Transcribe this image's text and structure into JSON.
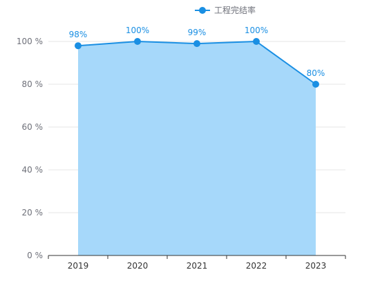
{
  "chart_data": {
    "type": "area",
    "categories": [
      "2019",
      "2020",
      "2021",
      "2022",
      "2023"
    ],
    "series": [
      {
        "name": "工程完结率",
        "values": [
          98,
          100,
          99,
          100,
          80
        ],
        "labels": [
          "98%",
          "100%",
          "99%",
          "100%",
          "80%"
        ]
      }
    ],
    "ylim": [
      0,
      100
    ],
    "yticks": [
      0,
      20,
      40,
      60,
      80,
      100
    ],
    "ytick_labels": [
      "0 %",
      "20 %",
      "40 %",
      "60 %",
      "80 %",
      "100 %"
    ],
    "grid": true,
    "legend_position": "top-center",
    "colors": {
      "line": "#1a8fe3",
      "area": "#a6d8fa",
      "grid": "#e6e6e6",
      "axis": "#333333"
    }
  }
}
